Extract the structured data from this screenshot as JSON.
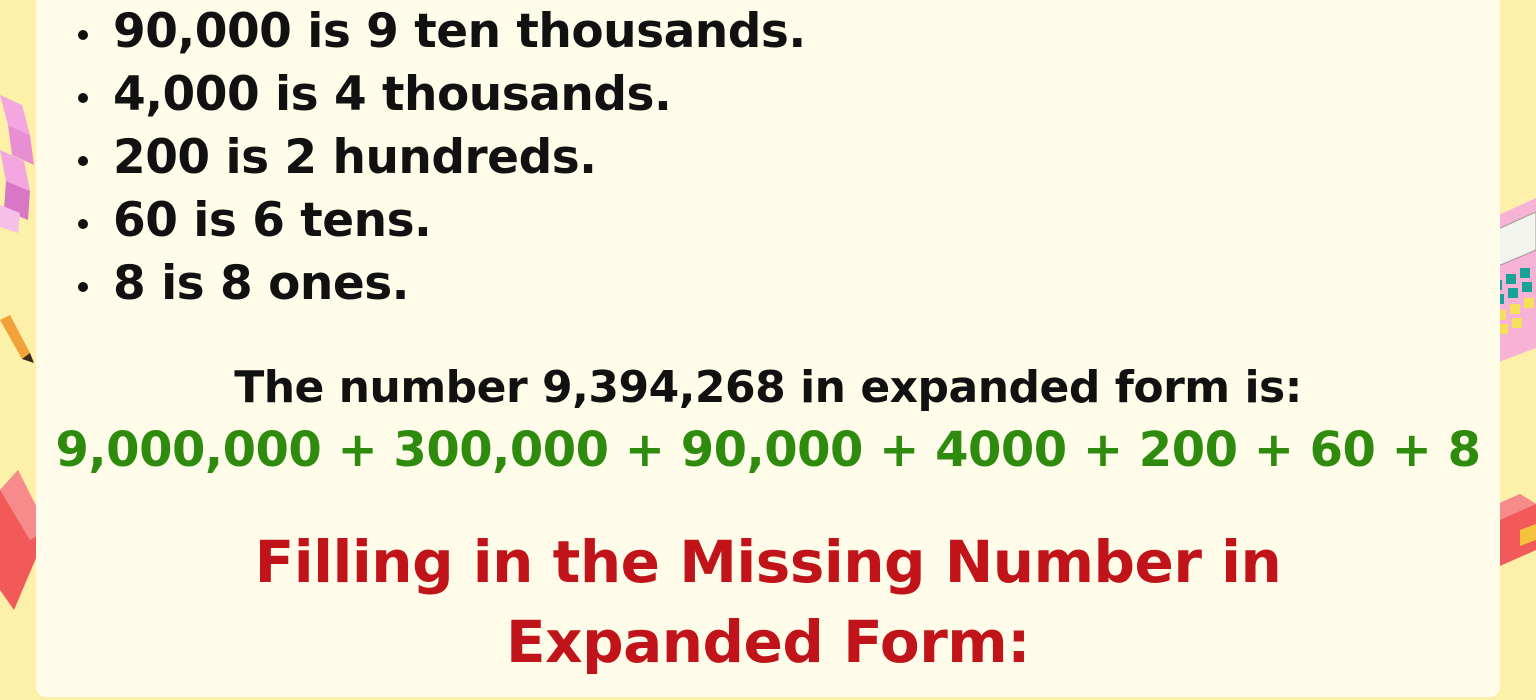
{
  "place_values": [
    "90,000 is 9 ten thousands.",
    "4,000 is 4 thousands.",
    "200 is 2 hundreds.",
    "60 is 6 tens.",
    "8 is 8 ones."
  ],
  "expanded_heading": "The number 9,394,268 in expanded form is:",
  "expanded_value": "9,000,000 + 300,000 + 90,000 + 4000 + 200 + 60 + 8",
  "section_title_line1": "Filling in the Missing Number in",
  "section_title_line2": "Expanded Form:",
  "colors": {
    "background": "#fdf0a8",
    "card": "#fffdea",
    "text": "#111111",
    "expanded_value": "#2e8b0e",
    "section_title": "#c0141a"
  }
}
